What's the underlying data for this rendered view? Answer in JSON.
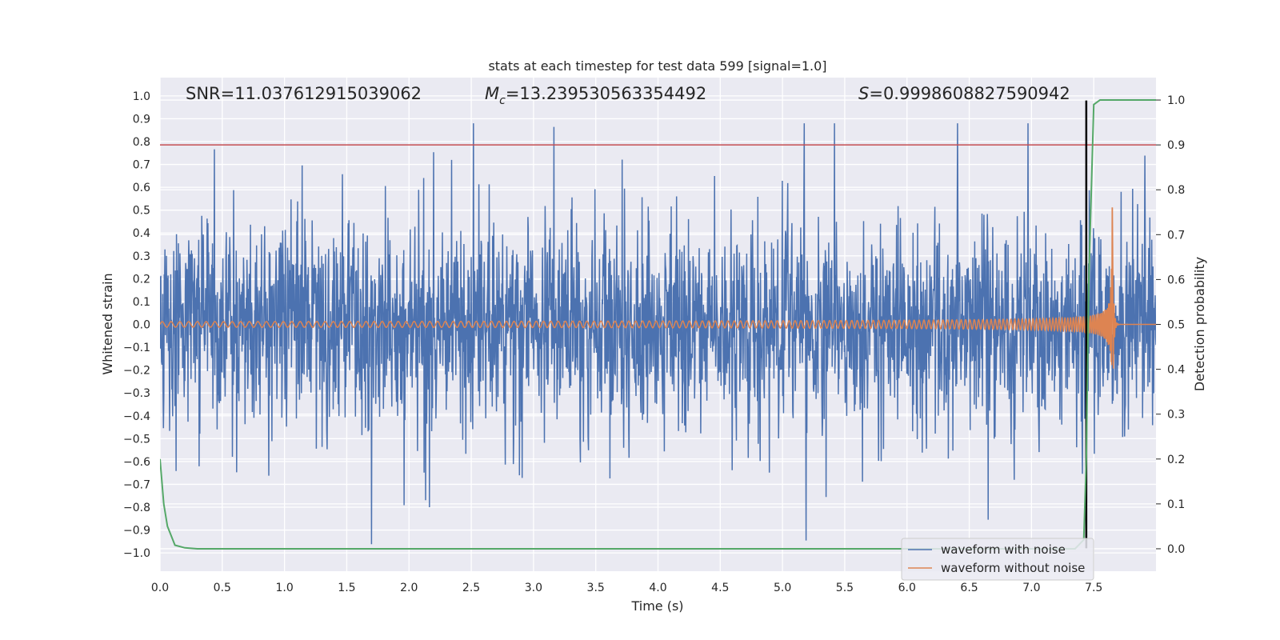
{
  "chart_data": {
    "type": "line",
    "title": "stats at each timestep for test data 599 [signal=1.0]",
    "xlabel": "Time (s)",
    "ylabel": "Whitened strain",
    "y2label": "Detection probability",
    "xlim": [
      0.0,
      8.0
    ],
    "ylim": [
      -1.08,
      1.08
    ],
    "y2lim": [
      -0.05,
      1.05
    ],
    "xticks": [
      "0.0",
      "0.5",
      "1.0",
      "1.5",
      "2.0",
      "2.5",
      "3.0",
      "3.5",
      "4.0",
      "4.5",
      "5.0",
      "5.5",
      "6.0",
      "6.5",
      "7.0",
      "7.5"
    ],
    "yticks": [
      "1.0",
      "0.9",
      "0.8",
      "0.7",
      "0.6",
      "0.5",
      "0.4",
      "0.3",
      "0.2",
      "0.1",
      "0.0",
      "−0.1",
      "−0.2",
      "−0.3",
      "−0.4",
      "−0.5",
      "−0.6",
      "−0.7",
      "−0.8",
      "−0.9",
      "−1.0"
    ],
    "y2ticks": [
      "1.0",
      "0.9",
      "0.8",
      "0.7",
      "0.6",
      "0.5",
      "0.4",
      "0.3",
      "0.2",
      "0.1",
      "0.0"
    ],
    "grid": true,
    "legend_position": "lower-right",
    "annotations": {
      "snr_label": "SNR=11.037612915039062",
      "mc_symbol": "M",
      "mc_sub": "c",
      "mc_value": "=13.239530563354492",
      "s_symbol": "S",
      "s_value": "=0.9998608827590942"
    },
    "threshold_y2": 0.9,
    "event_time": 7.44,
    "series": [
      {
        "name": "waveform with noise",
        "color": "#4c72b0",
        "amplitude_range": [
          -1.0,
          0.88
        ]
      },
      {
        "name": "waveform without noise",
        "color": "#dd8452",
        "chirp_end_time": 7.65,
        "peak_amplitude": 0.54,
        "min_amplitude": -0.37
      },
      {
        "color": "#55a868",
        "x": [
          0.0,
          0.03,
          0.06,
          0.12,
          0.2,
          0.3,
          7.35,
          7.42,
          7.44,
          7.46,
          7.5,
          7.55,
          8.0
        ],
        "y": [
          0.2,
          0.1,
          0.05,
          0.008,
          0.002,
          0.0,
          0.0,
          0.02,
          0.2,
          0.6,
          0.99,
          1.0,
          1.0
        ]
      },
      {
        "color": "#000000",
        "x": [
          7.44,
          7.44
        ],
        "y": [
          -0.98,
          0.98
        ]
      }
    ]
  }
}
